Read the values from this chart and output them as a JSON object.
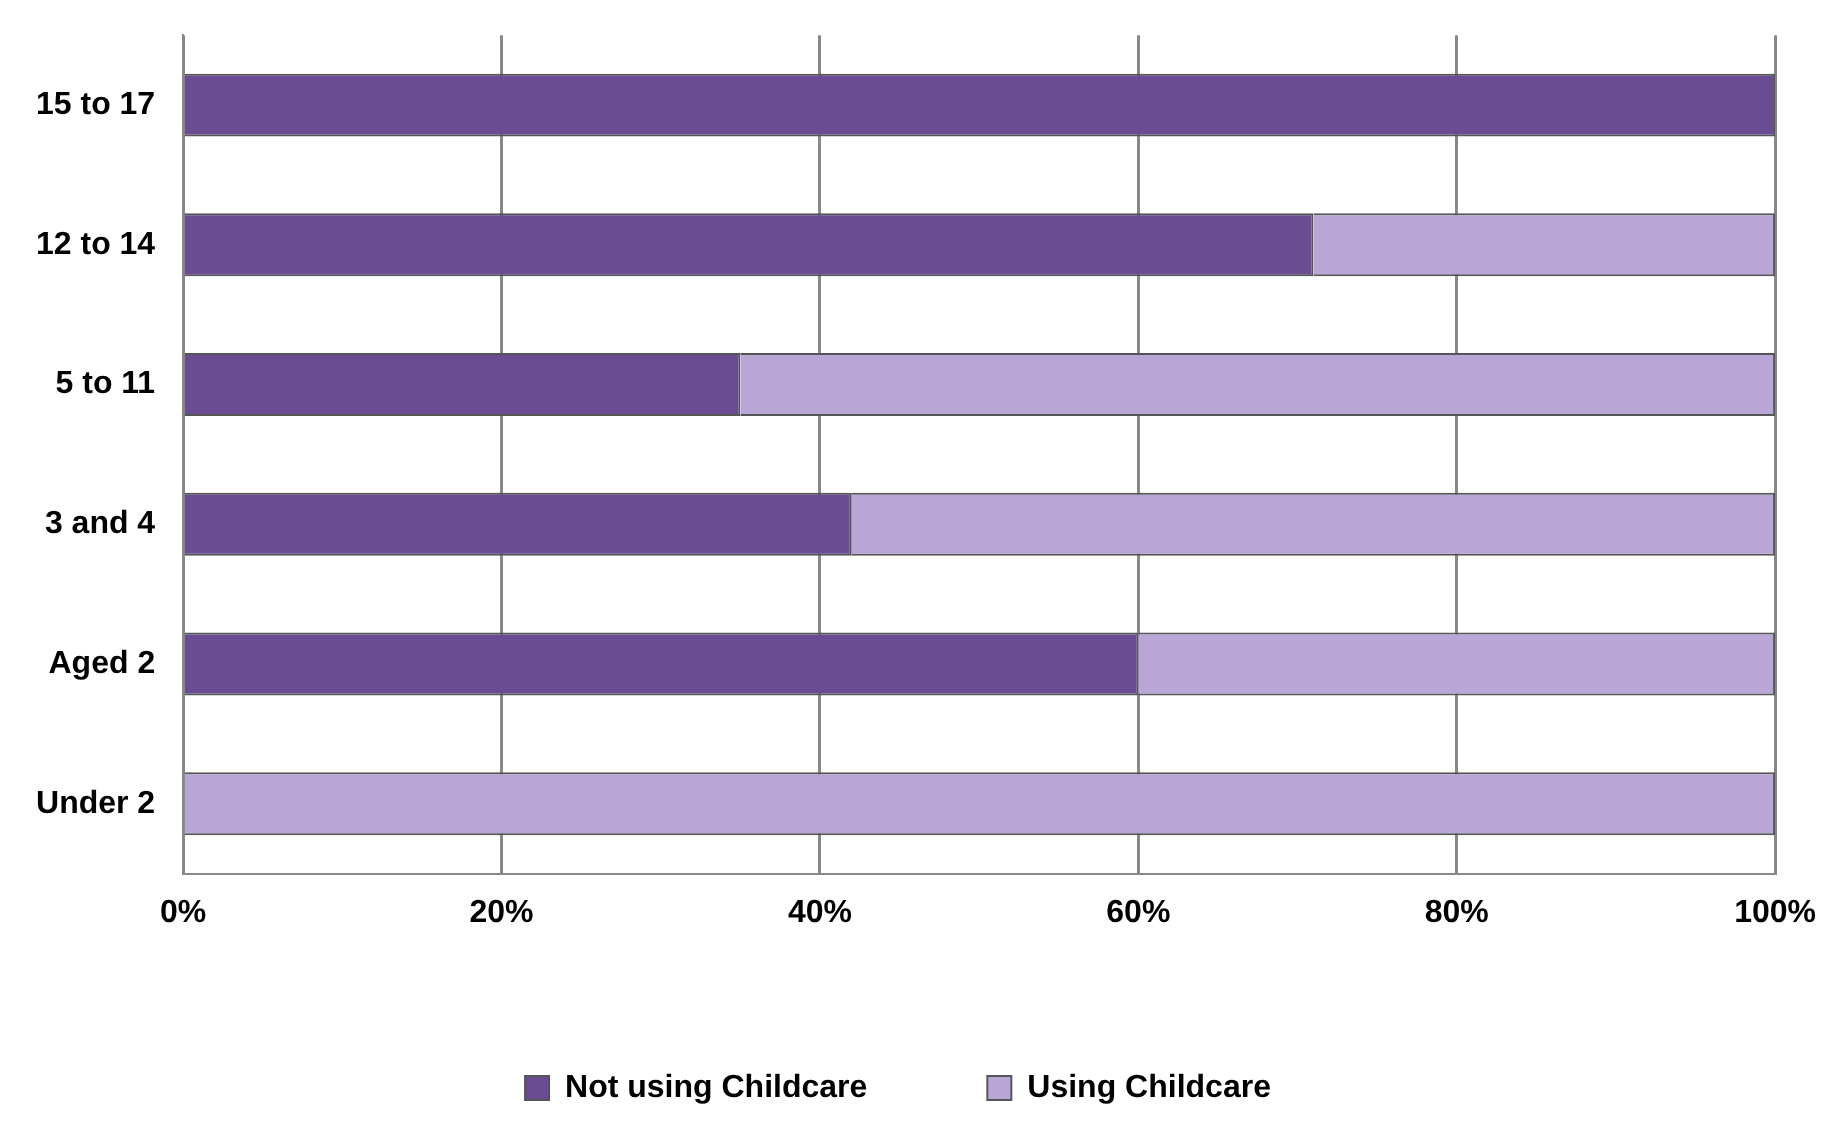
{
  "chart_data": {
    "type": "bar",
    "orientation": "horizontal",
    "stacked": true,
    "categories": [
      "15 to 17",
      "12 to 14",
      "5 to 11",
      "3 and 4",
      "Aged 2",
      "Under 2"
    ],
    "series": [
      {
        "name": "Not using Childcare",
        "color": "#6a4c93",
        "values": [
          100,
          71,
          35,
          42,
          60,
          0
        ]
      },
      {
        "name": "Using Childcare",
        "color": "#b9a5d6",
        "values": [
          0,
          29,
          65,
          58,
          40,
          100
        ]
      }
    ],
    "xlim": [
      0,
      100
    ],
    "xticks": [
      {
        "value": 0,
        "label": "0%"
      },
      {
        "value": 20,
        "label": "20%"
      },
      {
        "value": 40,
        "label": "40%"
      },
      {
        "value": 60,
        "label": "60%"
      },
      {
        "value": 80,
        "label": "80%"
      },
      {
        "value": 100,
        "label": "100%"
      }
    ],
    "grid": "x",
    "legend": "bottom"
  }
}
